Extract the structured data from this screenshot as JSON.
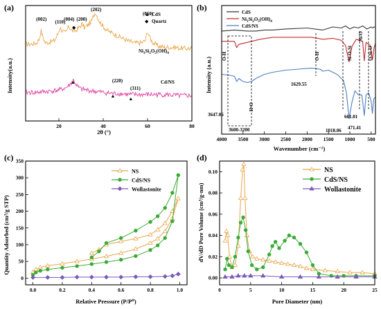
{
  "chart_data": [
    {
      "panel": "(a)",
      "type": "line",
      "xlabel": "2θ (°)",
      "ylabel": "Intensity(a.u.)",
      "xlim": [
        5,
        80
      ],
      "xticks": [
        "20",
        "40",
        "60",
        "80"
      ],
      "legend": [
        {
          "marker": "▲",
          "label": "CdS"
        },
        {
          "marker": "◆",
          "label": "Quartz"
        }
      ],
      "peak_labels": [
        {
          "x": 12.1,
          "text": "(002)"
        },
        {
          "x": 20.6,
          "text": "(110)"
        },
        {
          "x": 24.6,
          "text": "(004)"
        },
        {
          "x": 30.3,
          "text": "(200)"
        },
        {
          "x": 36.8,
          "text": "(202)"
        },
        {
          "x": 60.2,
          "text": "(060)"
        }
      ],
      "cds_peak_labels": [
        {
          "x": 43.9,
          "text": "(220)"
        },
        {
          "x": 52.0,
          "text": "(311)"
        }
      ],
      "series": [
        {
          "name": "Ni3Si2O5(OH)4",
          "color": "#E8A64A",
          "x": [
            5,
            8,
            10,
            11,
            12,
            13,
            14,
            16,
            18,
            19.5,
            20.5,
            21.5,
            23,
            24.5,
            26,
            27.5,
            29,
            30.5,
            31.5,
            33,
            34.5,
            35.5,
            36.5,
            37.5,
            38.5,
            40,
            42,
            45,
            48,
            51,
            54,
            57,
            59,
            60,
            61,
            62.5,
            65,
            68,
            72,
            76,
            80
          ],
          "y": [
            0.7,
            0.7,
            0.71,
            0.74,
            0.82,
            0.75,
            0.71,
            0.72,
            0.73,
            0.79,
            0.85,
            0.82,
            0.8,
            0.86,
            0.82,
            0.82,
            0.85,
            0.88,
            0.85,
            0.87,
            0.9,
            0.95,
            0.99,
            0.94,
            0.9,
            0.86,
            0.82,
            0.79,
            0.76,
            0.73,
            0.71,
            0.71,
            0.73,
            0.82,
            0.76,
            0.71,
            0.68,
            0.67,
            0.67,
            0.66,
            0.66
          ]
        },
        {
          "name": "Cd/NS",
          "color": "#E040A0",
          "x": [
            5,
            10,
            15,
            20,
            23,
            25,
            26.5,
            27.5,
            28.5,
            30,
            33,
            36,
            40,
            43.9,
            47,
            52,
            56,
            62,
            68,
            74,
            80
          ],
          "y": [
            0.26,
            0.26,
            0.27,
            0.28,
            0.3,
            0.33,
            0.37,
            0.34,
            0.31,
            0.29,
            0.28,
            0.27,
            0.26,
            0.25,
            0.25,
            0.24,
            0.24,
            0.24,
            0.24,
            0.23,
            0.23
          ]
        }
      ]
    },
    {
      "panel": "(b)",
      "type": "line",
      "xlabel": "Wavenumber (cm⁻¹)",
      "ylabel": "Intensity (a.u.)",
      "xlim": [
        4000,
        400
      ],
      "xticks": [
        "4000",
        "3500",
        "3000",
        "2500",
        "2000",
        "1500",
        "1000",
        "500"
      ],
      "band_labels": [
        "O-H",
        "O-H",
        "O-H",
        "Si-O-Si",
        "Ni-O",
        "O-Si-O"
      ],
      "value_labels": [
        "3647.06",
        "3600-3200",
        "1629.55",
        "1018.06",
        "661.01",
        "471.41"
      ],
      "series": [
        {
          "name": "CdS",
          "color": "#333333",
          "x": [
            4000,
            3700,
            3400,
            3200,
            3000,
            2800,
            2500,
            2000,
            1630,
            1400,
            1200,
            1100,
            1000,
            900,
            800,
            700,
            600,
            500,
            470,
            430,
            400
          ],
          "y": [
            0.92,
            0.93,
            0.92,
            0.92,
            0.93,
            0.93,
            0.94,
            0.95,
            0.93,
            0.96,
            0.95,
            0.97,
            0.94,
            0.96,
            0.95,
            0.97,
            0.94,
            0.96,
            0.95,
            0.96,
            0.96
          ]
        },
        {
          "name": "Ni3Si2O5(OH)4",
          "color": "#C2282E",
          "x": [
            4000,
            3700,
            3650,
            3600,
            3500,
            3300,
            3100,
            2800,
            2300,
            1900,
            1630,
            1400,
            1200,
            1100,
            1018,
            950,
            850,
            700,
            661,
            620,
            520,
            471,
            430,
            400
          ],
          "y": [
            0.82,
            0.82,
            0.76,
            0.79,
            0.8,
            0.82,
            0.84,
            0.86,
            0.86,
            0.86,
            0.84,
            0.85,
            0.83,
            0.78,
            0.62,
            0.77,
            0.84,
            0.82,
            0.63,
            0.81,
            0.78,
            0.64,
            0.76,
            0.8
          ]
        },
        {
          "name": "CdS/NS",
          "color": "#4A7CC0",
          "x": [
            4000,
            3800,
            3700,
            3647,
            3600,
            3500,
            3400,
            3300,
            3200,
            3000,
            2800,
            2500,
            2200,
            1900,
            1700,
            1630,
            1500,
            1300,
            1150,
            1080,
            1018,
            950,
            880,
            800,
            720,
            661,
            620,
            560,
            500,
            471,
            440,
            400
          ],
          "y": [
            0.5,
            0.49,
            0.48,
            0.43,
            0.46,
            0.43,
            0.42,
            0.43,
            0.46,
            0.5,
            0.52,
            0.54,
            0.55,
            0.56,
            0.55,
            0.53,
            0.54,
            0.5,
            0.44,
            0.32,
            0.07,
            0.23,
            0.34,
            0.3,
            0.3,
            0.1,
            0.3,
            0.32,
            0.24,
            0.12,
            0.26,
            0.28
          ]
        }
      ]
    },
    {
      "panel": "(c)",
      "type": "line",
      "xlabel": "Relative Pressure (P/P⁰)",
      "ylabel": "Quantity Adsorbed (cm³/g STP)",
      "xlim": [
        -0.05,
        1.05
      ],
      "ylim": [
        -20,
        350
      ],
      "xticks": [
        "0.0",
        "0.2",
        "0.4",
        "0.6",
        "0.8",
        "1.0"
      ],
      "yticks": [
        "0",
        "50",
        "100",
        "150",
        "200",
        "250",
        "300",
        "350"
      ],
      "series": [
        {
          "name": "NS",
          "color": "#E8A64A",
          "marker": "open-triangle",
          "x": [
            0.0,
            0.02,
            0.05,
            0.1,
            0.2,
            0.3,
            0.4,
            0.5,
            0.6,
            0.7,
            0.8,
            0.85,
            0.9,
            0.95,
            0.99,
            0.95,
            0.9,
            0.85,
            0.8,
            0.7,
            0.6,
            0.5,
            0.45,
            0.4
          ],
          "y": [
            18,
            26,
            32,
            37,
            43,
            50,
            57,
            65,
            75,
            87,
            105,
            118,
            140,
            178,
            238,
            200,
            164,
            145,
            130,
            118,
            110,
            100,
            85,
            75
          ]
        },
        {
          "name": "CdS/NS",
          "color": "#3BAA35",
          "marker": "filled-circle",
          "x": [
            0.0,
            0.02,
            0.05,
            0.1,
            0.2,
            0.3,
            0.4,
            0.5,
            0.6,
            0.7,
            0.8,
            0.85,
            0.9,
            0.95,
            0.99,
            0.95,
            0.9,
            0.85,
            0.8,
            0.7,
            0.6,
            0.5,
            0.45,
            0.4
          ],
          "y": [
            10,
            17,
            22,
            26,
            31,
            36,
            42,
            48,
            55,
            66,
            84,
            98,
            120,
            170,
            308,
            255,
            210,
            185,
            168,
            142,
            120,
            105,
            80,
            62
          ]
        },
        {
          "name": "Wollastonite",
          "color": "#7B5BB5",
          "marker": "filled-diamond",
          "x": [
            0.0,
            0.1,
            0.2,
            0.3,
            0.4,
            0.5,
            0.6,
            0.7,
            0.8,
            0.9,
            0.95,
            0.99
          ],
          "y": [
            2,
            2,
            2,
            3,
            3,
            3,
            3,
            4,
            4,
            5,
            7,
            12
          ]
        }
      ]
    },
    {
      "panel": "(d)",
      "type": "line",
      "xlabel": "Pore Diameter (nm)",
      "ylabel": "dV/dD Pore Volume (cm³/g·nm)",
      "xlim": [
        0,
        25
      ],
      "ylim": [
        0,
        0.11
      ],
      "xticks": [
        "0",
        "5",
        "10",
        "15",
        "20",
        "25"
      ],
      "yticks": [
        "0.00",
        "0.02",
        "0.04",
        "0.06",
        "0.08",
        "0.10"
      ],
      "series": [
        {
          "name": "NS",
          "color": "#E8A64A",
          "marker": "open-triangle",
          "x": [
            0.9,
            1.1,
            1.3,
            1.6,
            2.0,
            2.5,
            3.0,
            3.4,
            3.7,
            3.9,
            4.1,
            4.4,
            4.8,
            5.3,
            6,
            7,
            8,
            9,
            10,
            11,
            12,
            13,
            14,
            15,
            17,
            19,
            21,
            23,
            25
          ],
          "y": [
            0.035,
            0.044,
            0.04,
            0.02,
            0.01,
            0.012,
            0.03,
            0.075,
            0.102,
            0.107,
            0.075,
            0.04,
            0.025,
            0.02,
            0.018,
            0.017,
            0.016,
            0.015,
            0.014,
            0.013,
            0.012,
            0.011,
            0.009,
            0.008,
            0.007,
            0.006,
            0.005,
            0.005,
            0.004
          ]
        },
        {
          "name": "CdS/NS",
          "color": "#3BAA35",
          "marker": "filled-circle",
          "x": [
            0.9,
            1.2,
            1.5,
            2.0,
            2.5,
            3.0,
            3.4,
            3.8,
            4.2,
            4.6,
            5.2,
            6,
            7,
            8,
            8.5,
            9,
            9.6,
            10.5,
            11.2,
            12,
            13,
            14,
            15,
            16,
            18,
            20,
            22,
            25
          ],
          "y": [
            0.008,
            0.018,
            0.012,
            0.01,
            0.02,
            0.038,
            0.052,
            0.057,
            0.045,
            0.025,
            0.012,
            0.008,
            0.01,
            0.022,
            0.03,
            0.034,
            0.028,
            0.035,
            0.04,
            0.038,
            0.032,
            0.024,
            0.012,
            0.004,
            0.002,
            0.002,
            0.002,
            0.002
          ]
        },
        {
          "name": "Wollastonite",
          "color": "#7B5BB5",
          "marker": "filled-triangle",
          "x": [
            0.9,
            2,
            3,
            4,
            5,
            7,
            10,
            13,
            16,
            19,
            22,
            25
          ],
          "y": [
            0.001,
            0.001,
            0.002,
            0.002,
            0.002,
            0.002,
            0.001,
            0.001,
            0.001,
            0.001,
            0.001,
            0.001
          ]
        }
      ]
    }
  ]
}
